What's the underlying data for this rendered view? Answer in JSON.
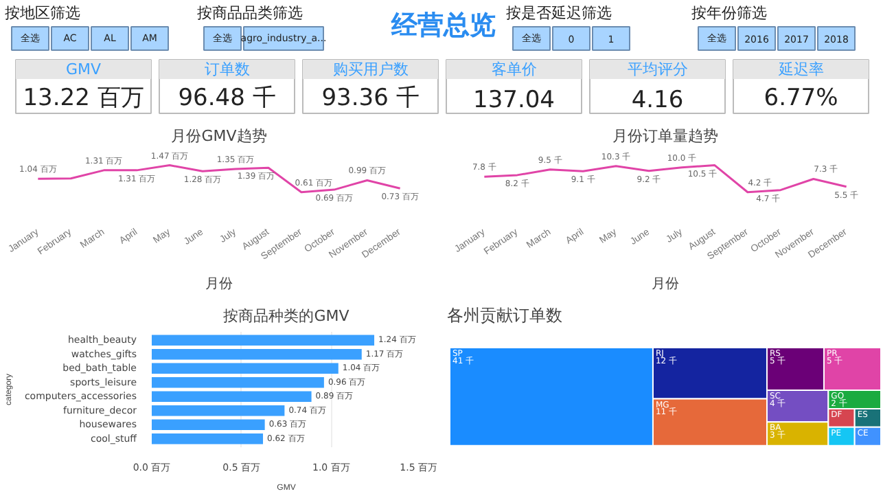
{
  "chart_data": [
    {
      "type": "other",
      "title": "按地区筛选",
      "categories": [
        "全选",
        "AC",
        "AL",
        "AM"
      ]
    },
    {
      "type": "other",
      "title": "按商品品类筛选",
      "categories": [
        "全选",
        "agro_industry_a..."
      ]
    },
    {
      "type": "other",
      "title": "经营总览"
    },
    {
      "type": "other",
      "title": "按是否延迟筛选",
      "categories": [
        "全选",
        "0",
        "1"
      ]
    },
    {
      "type": "other",
      "title": "按年份筛选",
      "categories": [
        "全选",
        "2016",
        "2017",
        "2018"
      ]
    },
    {
      "type": "other",
      "categories": [
        "GMV",
        "订单数",
        "购买用户数",
        "客单价",
        "平均评分",
        "延迟率"
      ],
      "value_labels": [
        "13.22 百万",
        "96.48 千",
        "93.36 千",
        "137.04",
        "4.16",
        "6.77%"
      ]
    },
    {
      "type": "line",
      "title": "月份GMV趋势",
      "xlabel": "月份",
      "categories": [
        "January",
        "February",
        "March",
        "April",
        "May",
        "June",
        "July",
        "August",
        "September",
        "October",
        "November",
        "December"
      ],
      "color": "#e044a7",
      "tick_labels": "x",
      "grid": false,
      "values": [
        1.04,
        1.05,
        1.31,
        1.31,
        1.47,
        1.28,
        1.35,
        1.39,
        0.61,
        0.69,
        0.99,
        0.73
      ],
      "value_labels": [
        "1.04 百万",
        null,
        "1.31 百万",
        "1.31 百万",
        "1.47 百万",
        "1.28 百万",
        "1.35 百万",
        "1.39 百万",
        "0.61 百万",
        "0.69 百万",
        "0.99 百万",
        "0.73 百万"
      ]
    },
    {
      "type": "line",
      "title": "月份订单量趋势",
      "xlabel": "月份",
      "categories": [
        "January",
        "February",
        "March",
        "April",
        "May",
        "June",
        "July",
        "August",
        "September",
        "October",
        "November",
        "December"
      ],
      "color": "#e044a7",
      "tick_labels": "x",
      "grid": false,
      "values": [
        7.8,
        8.2,
        9.5,
        9.1,
        10.3,
        9.2,
        10.0,
        10.5,
        4.2,
        4.7,
        7.3,
        5.5
      ],
      "value_labels": [
        "7.8 千",
        "8.2 千",
        "9.5 千",
        "9.1 千",
        "10.3 千",
        "9.2 千",
        "10.0 千",
        "10.5 千",
        "4.2 千",
        "4.7 千",
        "7.3 千",
        "5.5 千"
      ]
    },
    {
      "type": "bar",
      "orientation": "horizontal",
      "title": "按商品种类的GMV",
      "xlabel": "GMV",
      "ylabel": "category",
      "color": "#3aa0ff",
      "grid": "x",
      "categories": [
        "health_beauty",
        "watches_gifts",
        "bed_bath_table",
        "sports_leisure",
        "computers_accessories",
        "furniture_decor",
        "housewares",
        "cool_stuff"
      ],
      "values": [
        1.24,
        1.17,
        1.04,
        0.96,
        0.89,
        0.74,
        0.63,
        0.62
      ],
      "value_labels": [
        "1.24 百万",
        "1.17 百万",
        "1.04 百万",
        "0.96 百万",
        "0.89 百万",
        "0.74 百万",
        "0.63 百万",
        "0.62 百万"
      ],
      "xlim": [
        0,
        1.5
      ],
      "xticks": [
        {
          "value": 0,
          "label": "0.0 百万"
        },
        {
          "value": 0.5,
          "label": "0.5 百万"
        },
        {
          "value": 1.0,
          "label": "1.0 百万"
        },
        {
          "value": 1.5,
          "label": "1.5 百万"
        }
      ]
    },
    {
      "type": "other",
      "title": "各州贡献订单数",
      "categories": [
        "SP",
        "RJ",
        "MG",
        "RS",
        "PR",
        "SC",
        "BA",
        "GO",
        "DF",
        "ES",
        "PE",
        "CE"
      ],
      "values": [
        41,
        12,
        11,
        5,
        5,
        4,
        3,
        2,
        null,
        null,
        null,
        null
      ],
      "value_labels": [
        "41 千",
        "12 千",
        "11 千",
        "5 千",
        "5 千",
        "4 千",
        "3 千",
        "2 千",
        null,
        null,
        null,
        null
      ],
      "colors": [
        "#1a8cff",
        "#1424a0",
        "#e6693a",
        "#6b0077",
        "#e044a7",
        "#744ec2",
        "#d9b300",
        "#1aab40",
        "#d64550",
        "#197278",
        "#15c6f4",
        "#4092ff"
      ]
    }
  ]
}
